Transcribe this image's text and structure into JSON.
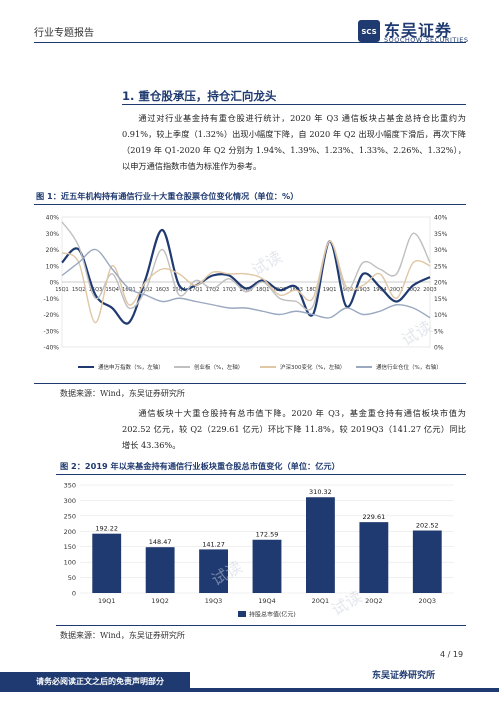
{
  "header": {
    "section_label": "行业专题报告",
    "logo_cn": "东吴证券",
    "logo_en": "SOOCHOW SECURITIES",
    "logo_mark": "SCS"
  },
  "section": {
    "title": "1. 重仓股承压，持仓汇向龙头"
  },
  "paragraph1": "通过对行业基金持有重仓股进行统计，2020 年 Q3 通信板块占基金总持仓比重约为 0.91%，较上季度（1.32%）出现小幅度下降，自 2020 年 Q2 出现小幅度下滑后，再次下降（2019 年 Q1-2020 年 Q2 分别为 1.94%、1.39%、1.23%、1.33%、2.26%、1.32%），以申万通信指数市值为标准作为参考。",
  "figure1": {
    "title": "图 1：近五年机构持有通信行业十大重仓股票仓位变化情况（单位：%）",
    "source": "数据来源：Wind，东吴证券研究所",
    "legend": [
      "通信申万指数（%，左轴）",
      "创业板（%，左轴）",
      "沪深300变化（%，左轴）",
      "通信行业仓位（%，右轴）"
    ]
  },
  "paragraph2": "通信板块十大重仓股持有总市值下降。2020 年 Q3，基金重仓持有通信板块市值为 202.52 亿元，较 Q2（229.61 亿元）环比下降 11.8%，较 2019Q3（141.27 亿元）同比增长 43.36%。",
  "figure2": {
    "title": "图 2：2019 年以来基金持有通信行业板块重仓股总市值变化（单位：亿元）",
    "source": "数据来源：Wind，东吴证券研究所",
    "legend": "持股总市值(亿元)"
  },
  "footer": {
    "page": "4 / 19",
    "disclaimer": "请务必阅读正文之后的免责声明部分",
    "org": "东吴证券研究所"
  },
  "watermark": "试读",
  "colors": {
    "brand": "#1f3a70",
    "bar": "#1f3a70"
  },
  "chart_data": [
    {
      "type": "line",
      "title": "近五年机构持有通信行业十大重仓股票仓位变化情况（单位：%）",
      "categories": [
        "15Q1",
        "15Q2",
        "15Q3",
        "15Q4",
        "16Q1",
        "16Q2",
        "16Q3",
        "16Q4",
        "17Q1",
        "17Q2",
        "17Q3",
        "17Q4",
        "18Q1",
        "18Q2",
        "18Q3",
        "18Q4",
        "19Q1",
        "19Q2",
        "19Q3",
        "19Q4",
        "20Q1",
        "20Q2",
        "20Q3"
      ],
      "left_ylim": [
        -40,
        40
      ],
      "right_ylim": [
        0,
        40
      ],
      "left_ticks": [
        "40%",
        "30%",
        "20%",
        "10%",
        "0%",
        "-10%",
        "-20%",
        "-30%",
        "-40%"
      ],
      "right_ticks": [
        "40%",
        "35%",
        "30%",
        "25%",
        "20%",
        "15%",
        "10%",
        "5%",
        "0%"
      ],
      "series": [
        {
          "name": "通信申万指数（%，左轴）",
          "axis": "left",
          "color": "#1f3a70",
          "width": 2.2,
          "values": [
            12,
            20,
            -8,
            -16,
            -25,
            2,
            32,
            -2,
            -2,
            4,
            4,
            -4,
            1,
            -5,
            -3,
            -20,
            25,
            -15,
            5,
            -3,
            -12,
            -2,
            3
          ]
        },
        {
          "name": "创业板（%，左轴）",
          "axis": "left",
          "color": "#bfbfbf",
          "width": 1.4,
          "values": [
            37,
            22,
            -10,
            5,
            -16,
            -5,
            20,
            -8,
            1,
            -4,
            2,
            -6,
            0,
            -10,
            -12,
            -15,
            25,
            -5,
            12,
            8,
            5,
            30,
            12
          ]
        },
        {
          "name": "沪深300变化（%，左轴）",
          "axis": "left",
          "color": "#e0c7a5",
          "width": 1.4,
          "values": [
            18,
            12,
            -25,
            10,
            -14,
            0,
            8,
            5,
            -2,
            6,
            5,
            5,
            2,
            -8,
            -5,
            -10,
            25,
            -3,
            -2,
            5,
            -10,
            12,
            10
          ]
        },
        {
          "name": "通信行业仓位（%，右轴）",
          "axis": "right",
          "color": "#9aa8c0",
          "width": 1.4,
          "values": [
            22,
            26,
            30,
            24,
            18,
            16,
            14,
            15,
            14,
            13,
            12,
            12,
            11,
            10,
            11,
            10,
            9,
            12,
            10,
            11,
            13,
            12,
            9
          ]
        }
      ]
    },
    {
      "type": "bar",
      "title": "2019 年以来基金持有通信行业板块重仓股总市值变化（单位：亿元）",
      "categories": [
        "19Q1",
        "19Q2",
        "19Q3",
        "19Q4",
        "20Q1",
        "20Q2",
        "20Q3"
      ],
      "values": [
        192.22,
        148.47,
        141.27,
        172.59,
        310.32,
        229.61,
        202.52
      ],
      "value_labels": [
        "192.22",
        "148.47",
        "141.27",
        "172.59",
        "310.32",
        "229.61",
        "202.52"
      ],
      "ylim": [
        0,
        350
      ],
      "y_ticks": [
        "350",
        "300",
        "250",
        "200",
        "150",
        "100",
        "50",
        "0"
      ],
      "legend": "持股总市值(亿元)"
    }
  ]
}
